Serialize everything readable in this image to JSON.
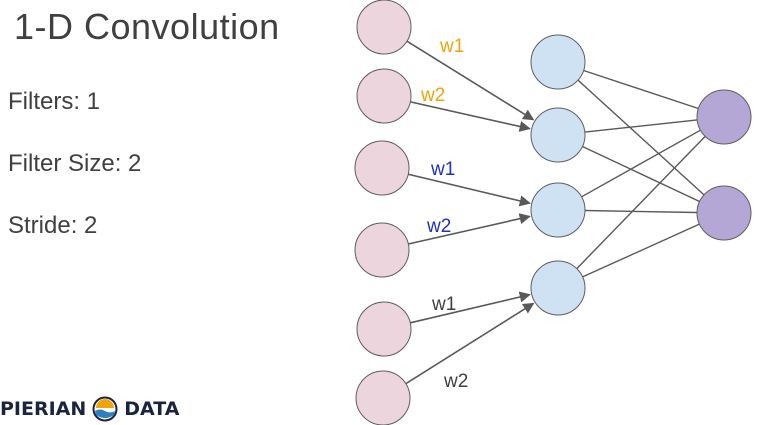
{
  "title": "1-D Convolution",
  "params": {
    "filters": "Filters: 1",
    "filter_size": "Filter Size: 2",
    "stride": "Stride: 2"
  },
  "logo": {
    "left_text": "PIERIAN",
    "right_text": "DATA",
    "icon": "wave-sun-icon"
  },
  "colors": {
    "input_fill": "#ecd5dc",
    "hidden_fill": "#cfe2f3",
    "output_fill": "#b4a7d6",
    "node_stroke": "#5f5f5f",
    "edge": "#595959",
    "w_orange": "#f1a30a",
    "w_blue": "#1f2fc9",
    "w_gray": "#404040"
  },
  "weights": [
    {
      "label": "w1",
      "color": "w_orange"
    },
    {
      "label": "w2",
      "color": "w_orange"
    },
    {
      "label": "w1",
      "color": "w_blue"
    },
    {
      "label": "w2",
      "color": "w_blue"
    },
    {
      "label": "w1",
      "color": "w_gray"
    },
    {
      "label": "w2",
      "color": "w_gray"
    }
  ]
}
